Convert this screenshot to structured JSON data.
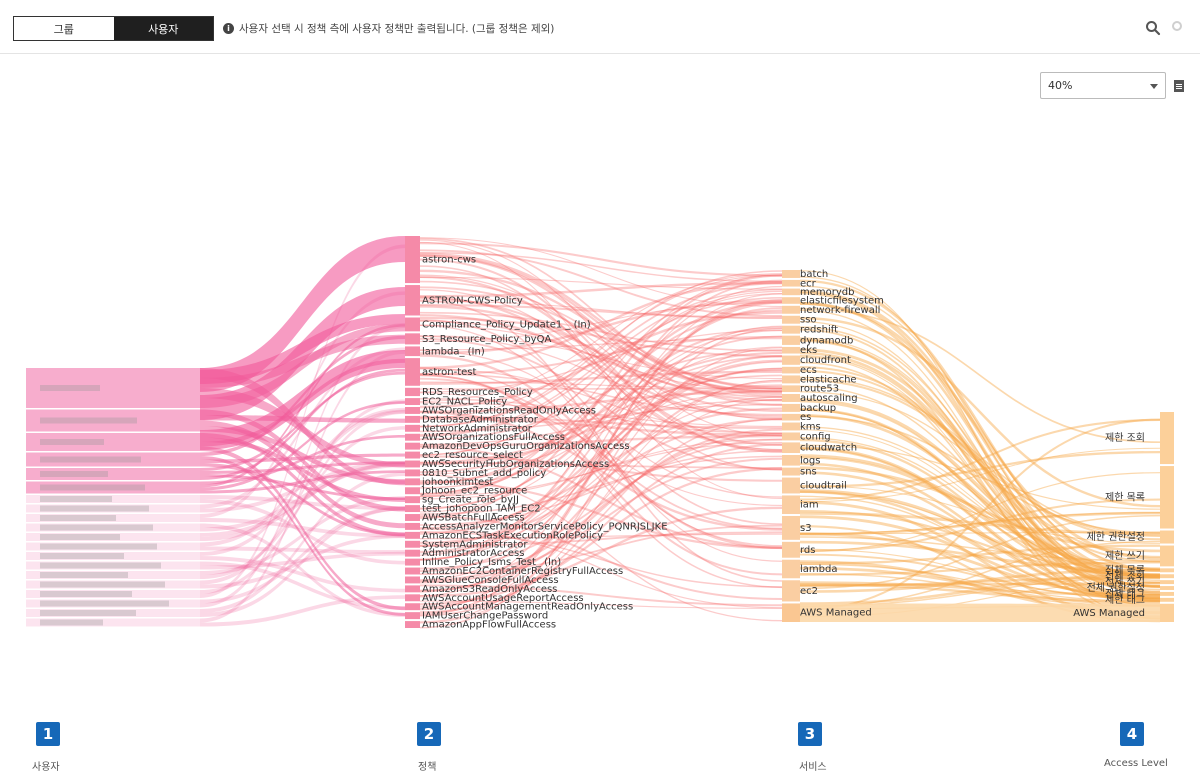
{
  "toggle": {
    "group": "그룹",
    "user": "사용자"
  },
  "notice": "사용자 선택 시 정책 측에 사용자 정책만 출력됩니다. (그룹 정책은 제외)",
  "zoom": {
    "value": "40%"
  },
  "policies": [
    {
      "label": "astron-cws",
      "w": 34
    },
    {
      "label": "ASTRON-CWS-Policy",
      "w": 22
    },
    {
      "label": "Compliance_Policy_Update1 _ (In)",
      "w": 10
    },
    {
      "label": "S3_Resource_Policy_byQA",
      "w": 8
    },
    {
      "label": "lambda_ (In)",
      "w": 7
    },
    {
      "label": "astron-test",
      "w": 20
    },
    {
      "label": "RDS_Resources_Policy",
      "w": 6
    },
    {
      "label": "EC2_NACL_Policy",
      "w": 5
    },
    {
      "label": "AWSOrganizationsReadOnlyAccess",
      "w": 5
    },
    {
      "label": "DatabaseAdministrator",
      "w": 5
    },
    {
      "label": "NetworkAdministrator",
      "w": 5
    },
    {
      "label": "AWSOrganizationsFullAccess",
      "w": 5
    },
    {
      "label": "AmazonDevOpsGuruOrganizationsAccess",
      "w": 5
    },
    {
      "label": "ec2_resource_select",
      "w": 5
    },
    {
      "label": "AWSSecurityHubOrganizationsAccess",
      "w": 5
    },
    {
      "label": "0810_Subnet_add_policy",
      "w": 5
    },
    {
      "label": "johoonkimtest",
      "w": 5
    },
    {
      "label": "Johoon_ec2_resource",
      "w": 5
    },
    {
      "label": "sg_Create_role_byJJ",
      "w": 5
    },
    {
      "label": "test_johopoon_IAM_EC2",
      "w": 5
    },
    {
      "label": "AWSBatchFullAccess",
      "w": 5
    },
    {
      "label": "AccessAnalyzerMonitorServicePolicy_PQNRJSLJKE",
      "w": 5
    },
    {
      "label": "AmazonECSTaskExecutionRolePolicy",
      "w": 5
    },
    {
      "label": "SystemAdministrator",
      "w": 5
    },
    {
      "label": "AdministratorAccess",
      "w": 5
    },
    {
      "label": "Inline_Policy_Isms_Test_ (In)",
      "w": 5
    },
    {
      "label": "AmazonEC2ContainerRegistryFullAccess",
      "w": 5
    },
    {
      "label": "AWSGlueConsoleFullAccess",
      "w": 5
    },
    {
      "label": "AmazonS3ReadOnlyAccess",
      "w": 5
    },
    {
      "label": "AWSAccountUsageReportAccess",
      "w": 5
    },
    {
      "label": "AWSAccountManagementReadOnlyAccess",
      "w": 5
    },
    {
      "label": "IAMUserChangePassword",
      "w": 5
    },
    {
      "label": "AmazonAppFlowFullAccess",
      "w": 5
    }
  ],
  "services": [
    {
      "label": "batch",
      "w": 6
    },
    {
      "label": "ecr",
      "w": 5
    },
    {
      "label": "memorydb",
      "w": 5
    },
    {
      "label": "elasticfilesystem",
      "w": 5
    },
    {
      "label": "network-firewall",
      "w": 6
    },
    {
      "label": "sso",
      "w": 6
    },
    {
      "label": "redshift",
      "w": 6
    },
    {
      "label": "dynamodb",
      "w": 7
    },
    {
      "label": "eks",
      "w": 5
    },
    {
      "label": "cloudfront",
      "w": 7
    },
    {
      "label": "ecs",
      "w": 5
    },
    {
      "label": "elasticache",
      "w": 6
    },
    {
      "label": "route53",
      "w": 5
    },
    {
      "label": "autoscaling",
      "w": 6
    },
    {
      "label": "backup",
      "w": 6
    },
    {
      "label": "es",
      "w": 5
    },
    {
      "label": "kms",
      "w": 6
    },
    {
      "label": "config",
      "w": 6
    },
    {
      "label": "cloudwatch",
      "w": 8
    },
    {
      "label": "logs",
      "w": 8
    },
    {
      "label": "sns",
      "w": 6
    },
    {
      "label": "cloudtrail",
      "w": 12
    },
    {
      "label": "iam",
      "w": 14
    },
    {
      "label": "s3",
      "w": 18
    },
    {
      "label": "rds",
      "w": 12
    },
    {
      "label": "lambda",
      "w": 14
    },
    {
      "label": "ec2",
      "w": 16
    },
    {
      "label": "AWS Managed",
      "w": 14
    }
  ],
  "levels": [
    {
      "label": "제한 조회",
      "w": 40
    },
    {
      "label": "제한 목록",
      "w": 48
    },
    {
      "label": "제한 권한설정",
      "w": 10
    },
    {
      "label": "제한 쓰기",
      "w": 16
    },
    {
      "label": "전체 목록",
      "w": 3
    },
    {
      "label": "전체 조회",
      "w": 3
    },
    {
      "label": "전체 쓰기",
      "w": 3
    },
    {
      "label": "전체 권한설정",
      "w": 3
    },
    {
      "label": "전체 태그",
      "w": 3
    },
    {
      "label": "제한 태그",
      "w": 3
    },
    {
      "label": "AWS Managed",
      "w": 14
    }
  ],
  "columns": [
    {
      "num": "1",
      "label": "사용자"
    },
    {
      "num": "2",
      "label": "정책"
    },
    {
      "num": "3",
      "label": "서비스"
    },
    {
      "num": "4",
      "label": "Access Level"
    }
  ]
}
